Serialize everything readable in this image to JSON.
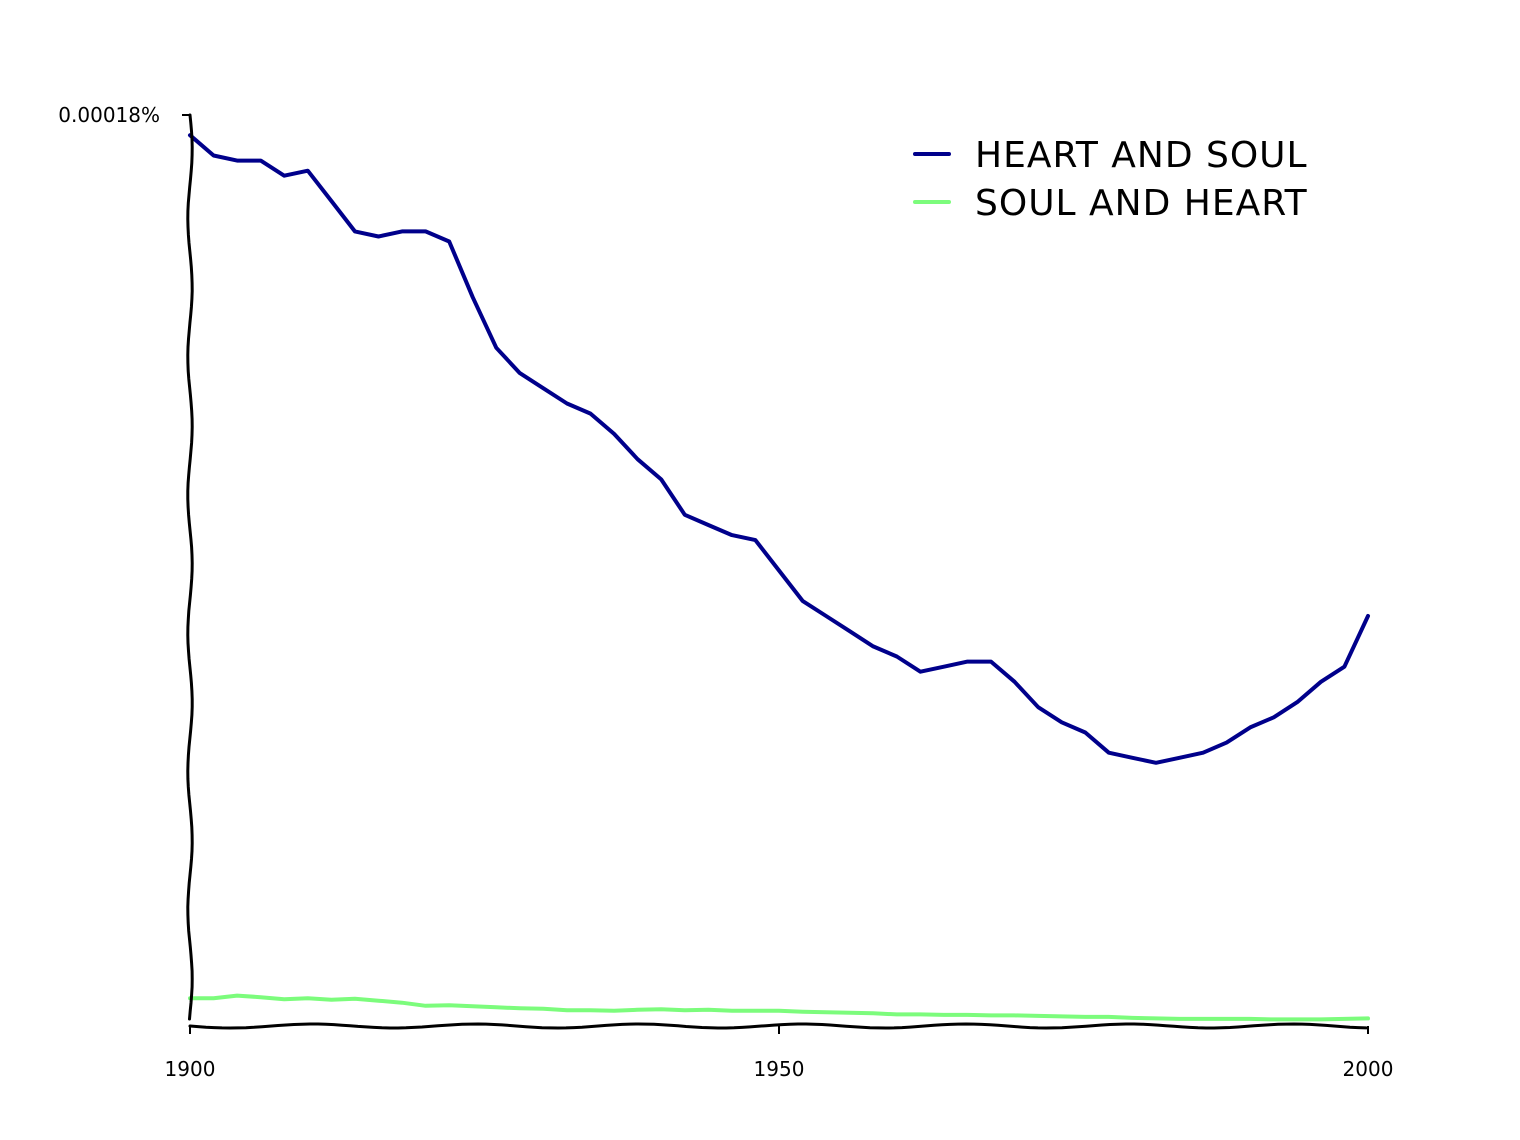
{
  "chart_data": {
    "type": "line",
    "title": "",
    "xlabel": "",
    "ylabel": "",
    "xlim": [
      1900,
      2000
    ],
    "ylim": [
      0,
      0.00018
    ],
    "x_ticks": [
      {
        "value": 1900,
        "label": "1900"
      },
      {
        "value": 1950,
        "label": "1950"
      },
      {
        "value": 2000,
        "label": "2000"
      }
    ],
    "y_ticks": [
      {
        "value": 0.00018,
        "label": "0.00018%"
      }
    ],
    "legend_position": "top-right",
    "grid": false,
    "x": [
      1900,
      1902,
      1904,
      1906,
      1908,
      1910,
      1912,
      1914,
      1916,
      1918,
      1920,
      1922,
      1924,
      1926,
      1928,
      1930,
      1932,
      1934,
      1936,
      1938,
      1940,
      1942,
      1944,
      1946,
      1948,
      1950,
      1952,
      1954,
      1956,
      1958,
      1960,
      1962,
      1964,
      1966,
      1968,
      1970,
      1972,
      1974,
      1976,
      1978,
      1980,
      1982,
      1984,
      1986,
      1988,
      1990,
      1992,
      1994,
      1996,
      1998,
      2000
    ],
    "series": [
      {
        "name": "HEART AND SOUL",
        "color": "#00008b",
        "values": [
          0.000176,
          0.000172,
          0.000171,
          0.000171,
          0.000168,
          0.000169,
          0.000163,
          0.000157,
          0.000156,
          0.000157,
          0.000157,
          0.000155,
          0.000144,
          0.000134,
          0.000129,
          0.000126,
          0.000123,
          0.000121,
          0.000117,
          0.000112,
          0.000108,
          0.000101,
          9.9e-05,
          9.7e-05,
          9.6e-05,
          9e-05,
          8.4e-05,
          8.1e-05,
          7.8e-05,
          7.5e-05,
          7.3e-05,
          7e-05,
          7.1e-05,
          7.2e-05,
          7.2e-05,
          6.8e-05,
          6.3e-05,
          6e-05,
          5.8e-05,
          5.4e-05,
          5.3e-05,
          5.2e-05,
          5.3e-05,
          5.4e-05,
          5.6e-05,
          5.9e-05,
          6.1e-05,
          6.4e-05,
          6.8e-05,
          7.1e-05,
          8.1e-05
        ]
      },
      {
        "name": "SOUL AND HEART",
        "color": "#7cfc7c",
        "values": [
          5.5e-06,
          5.5e-06,
          6e-06,
          5.7e-06,
          5.3e-06,
          5.5e-06,
          5.2e-06,
          5.4e-06,
          5e-06,
          4.6e-06,
          4e-06,
          4.1e-06,
          3.9e-06,
          3.7e-06,
          3.5e-06,
          3.4e-06,
          3.1e-06,
          3.1e-06,
          3e-06,
          3.2e-06,
          3.3e-06,
          3.1e-06,
          3.2e-06,
          3e-06,
          3e-06,
          3e-06,
          2.8e-06,
          2.7e-06,
          2.6e-06,
          2.5e-06,
          2.3e-06,
          2.3e-06,
          2.2e-06,
          2.2e-06,
          2.1e-06,
          2.1e-06,
          2e-06,
          1.9e-06,
          1.8e-06,
          1.8e-06,
          1.6e-06,
          1.5e-06,
          1.4e-06,
          1.4e-06,
          1.4e-06,
          1.4e-06,
          1.3e-06,
          1.3e-06,
          1.3e-06,
          1.4e-06,
          1.5e-06
        ]
      }
    ]
  }
}
